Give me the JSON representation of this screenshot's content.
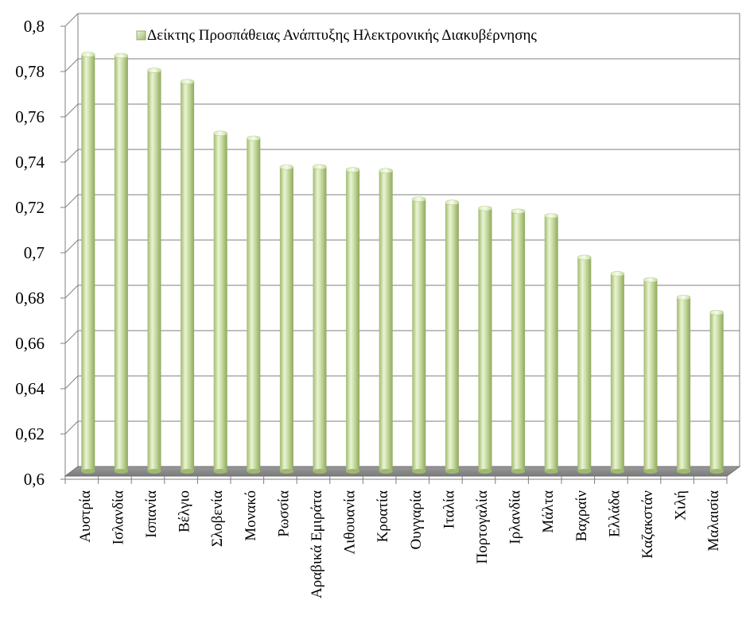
{
  "chart_data": {
    "type": "bar",
    "title": "",
    "xlabel": "",
    "ylabel": "",
    "ylim": [
      0.6,
      0.8
    ],
    "y_ticks": [
      "0,6",
      "0,62",
      "0,64",
      "0,66",
      "0,68",
      "0,7",
      "0,72",
      "0,74",
      "0,76",
      "0,78",
      "0,8"
    ],
    "grid": true,
    "legend_position": "top-right",
    "categories": [
      "Αυστρία",
      "Ισλανδία",
      "Ισπανία",
      "Βέλγιο",
      "Σλοβενία",
      "Μονακό",
      "Ρωσσία",
      "Αραβικά Εμιράτα",
      "Λιθουανία",
      "Κροατία",
      "Ουγγαρία",
      "Ιταλία",
      "Πορτογαλία",
      "Ιρλανδία",
      "Μάλτα",
      "Βαχραίν",
      "Ελλάδα",
      "Καζακστάν",
      "Χιλή",
      "Μαλαισία"
    ],
    "series": [
      {
        "name": "Δείκτης Προσπάθειας Ανάπτυξης Ηλεκτρονικής Διακυβέρνησης",
        "color": "#c6dba0",
        "values": [
          0.784,
          0.7835,
          0.777,
          0.772,
          0.7492,
          0.747,
          0.7343,
          0.7344,
          0.7331,
          0.7327,
          0.7201,
          0.7187,
          0.7161,
          0.7148,
          0.7128,
          0.6944,
          0.6872,
          0.6845,
          0.6768,
          0.6701
        ]
      }
    ]
  }
}
